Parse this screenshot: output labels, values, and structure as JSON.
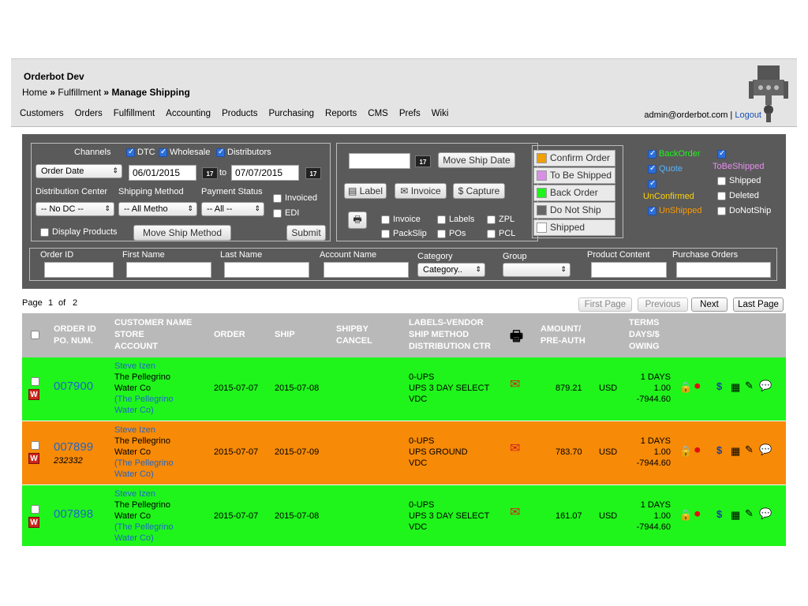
{
  "header": {
    "app_title": "Orderbot Dev",
    "breadcrumb_home": "Home",
    "breadcrumb_sep": "»",
    "breadcrumb_fulfillment": "Fulfillment",
    "breadcrumb_current": "Manage Shipping",
    "nav": [
      "Customers",
      "Orders",
      "Fulfillment",
      "Accounting",
      "Products",
      "Purchasing",
      "Reports",
      "CMS",
      "Prefs",
      "Wiki"
    ],
    "user_email": "admin@orderbot.com",
    "user_sep": "|",
    "logout": "Logout"
  },
  "filters": {
    "channels_label": "Channels",
    "channels": [
      {
        "label": "DTC",
        "checked": true
      },
      {
        "label": "Wholesale",
        "checked": true
      },
      {
        "label": "Distributors",
        "checked": true
      }
    ],
    "date_type": "Order Date",
    "date_from": "06/01/2015",
    "date_to_label": "to",
    "date_to": "07/07/2015",
    "cal_label": "17",
    "dc_label": "Distribution Center",
    "dc_value": "-- No DC --",
    "ship_method_label": "Shipping Method",
    "ship_method_value": "-- All Metho",
    "payment_label": "Payment Status",
    "payment_value": "-- All --",
    "invoiced": "Invoiced",
    "edi": "EDI",
    "display_products": "Display Products",
    "move_ship_method": "Move Ship Method",
    "submit": "Submit"
  },
  "actions": {
    "move_ship_date": "Move Ship Date",
    "label_btn": "Label",
    "invoice_btn": "Invoice",
    "capture_btn": "Capture",
    "print_opts": [
      "Invoice",
      "Labels",
      "ZPL",
      "PackSlip",
      "POs",
      "PCL"
    ]
  },
  "status_buttons": [
    {
      "label": "Confirm Order",
      "color": "#f0a000"
    },
    {
      "label": "To Be Shipped",
      "color": "#d98ee6"
    },
    {
      "label": "Back Order",
      "color": "#1ff51b"
    },
    {
      "label": "Do Not Ship",
      "color": "#666666"
    },
    {
      "label": "Shipped",
      "color": "#ffffff"
    }
  ],
  "status_filters": {
    "backorder": {
      "label": "BackOrder",
      "color": "#1ff51b"
    },
    "tobeshipped": {
      "label": "ToBeShipped",
      "color": "#e58ff0"
    },
    "quote": {
      "label": "Quote",
      "color": "#56b4ff"
    },
    "shipped": {
      "label": "Shipped",
      "color": "#ffffff"
    },
    "unconfirmed": {
      "label": "UnConfirmed",
      "color": "#ffd400"
    },
    "deleted": {
      "label": "Deleted",
      "color": "#ffffff"
    },
    "unshipped": {
      "label": "UnShipped",
      "color": "#ff9a00"
    },
    "donotship": {
      "label": "DoNotShip",
      "color": "#ffffff"
    }
  },
  "search": {
    "order_id": "Order ID",
    "first_name": "First Name",
    "last_name": "Last Name",
    "account_name": "Account Name",
    "category": "Category",
    "category_value": "Category..",
    "group": "Group",
    "product_content": "Product Content",
    "purchase_orders": "Purchase Orders"
  },
  "pager": {
    "page_label": "Page",
    "current": "1",
    "of_label": "of",
    "total": "2",
    "first": "First Page",
    "previous": "Previous",
    "next": "Next",
    "last": "Last Page"
  },
  "table_headers": {
    "order_id": "ORDER ID\nPO. NUM.",
    "customer": "CUSTOMER NAME\nSTORE\nACCOUNT",
    "order": "ORDER",
    "ship": "SHIP",
    "shipby": "SHIPBY\nCANCEL",
    "labels": "LABELS-VENDOR\nSHIP METHOD\nDISTRIBUTION CTR",
    "amount": "AMOUNT/\nPRE-AUTH",
    "terms": "TERMS\nDAYS/$\nOWING"
  },
  "rows": [
    {
      "order_id": "007900",
      "po": "",
      "customer": "Steve Izen",
      "store": "The Pellegrino\nWater Co",
      "account": "(The Pellegrino\nWater Co)",
      "order_date": "2015-07-07",
      "ship_date": "2015-07-08",
      "vendor": "0-UPS\nUPS 3 DAY SELECT\nVDC",
      "amount": "879.21",
      "currency": "USD",
      "terms": "1 DAYS\n1.00\n-7944.60",
      "color": "green"
    },
    {
      "order_id": "007899",
      "po": "232332",
      "customer": "Steve Izen",
      "store": "The Pellegrino\nWater Co",
      "account": "(The Pellegrino\nWater Co)",
      "order_date": "2015-07-07",
      "ship_date": "2015-07-09",
      "vendor": "0-UPS\nUPS GROUND\nVDC",
      "amount": "783.70",
      "currency": "USD",
      "terms": "1 DAYS\n1.00\n-7944.60",
      "color": "orange"
    },
    {
      "order_id": "007898",
      "po": "",
      "customer": "Steve Izen",
      "store": "The Pellegrino\nWater Co",
      "account": "(The Pellegrino\nWater Co)",
      "order_date": "2015-07-07",
      "ship_date": "2015-07-08",
      "vendor": "0-UPS\nUPS 3 DAY SELECT\nVDC",
      "amount": "161.07",
      "currency": "USD",
      "terms": "1 DAYS\n1.00\n-7944.60",
      "color": "green"
    }
  ],
  "w_badge": "W"
}
